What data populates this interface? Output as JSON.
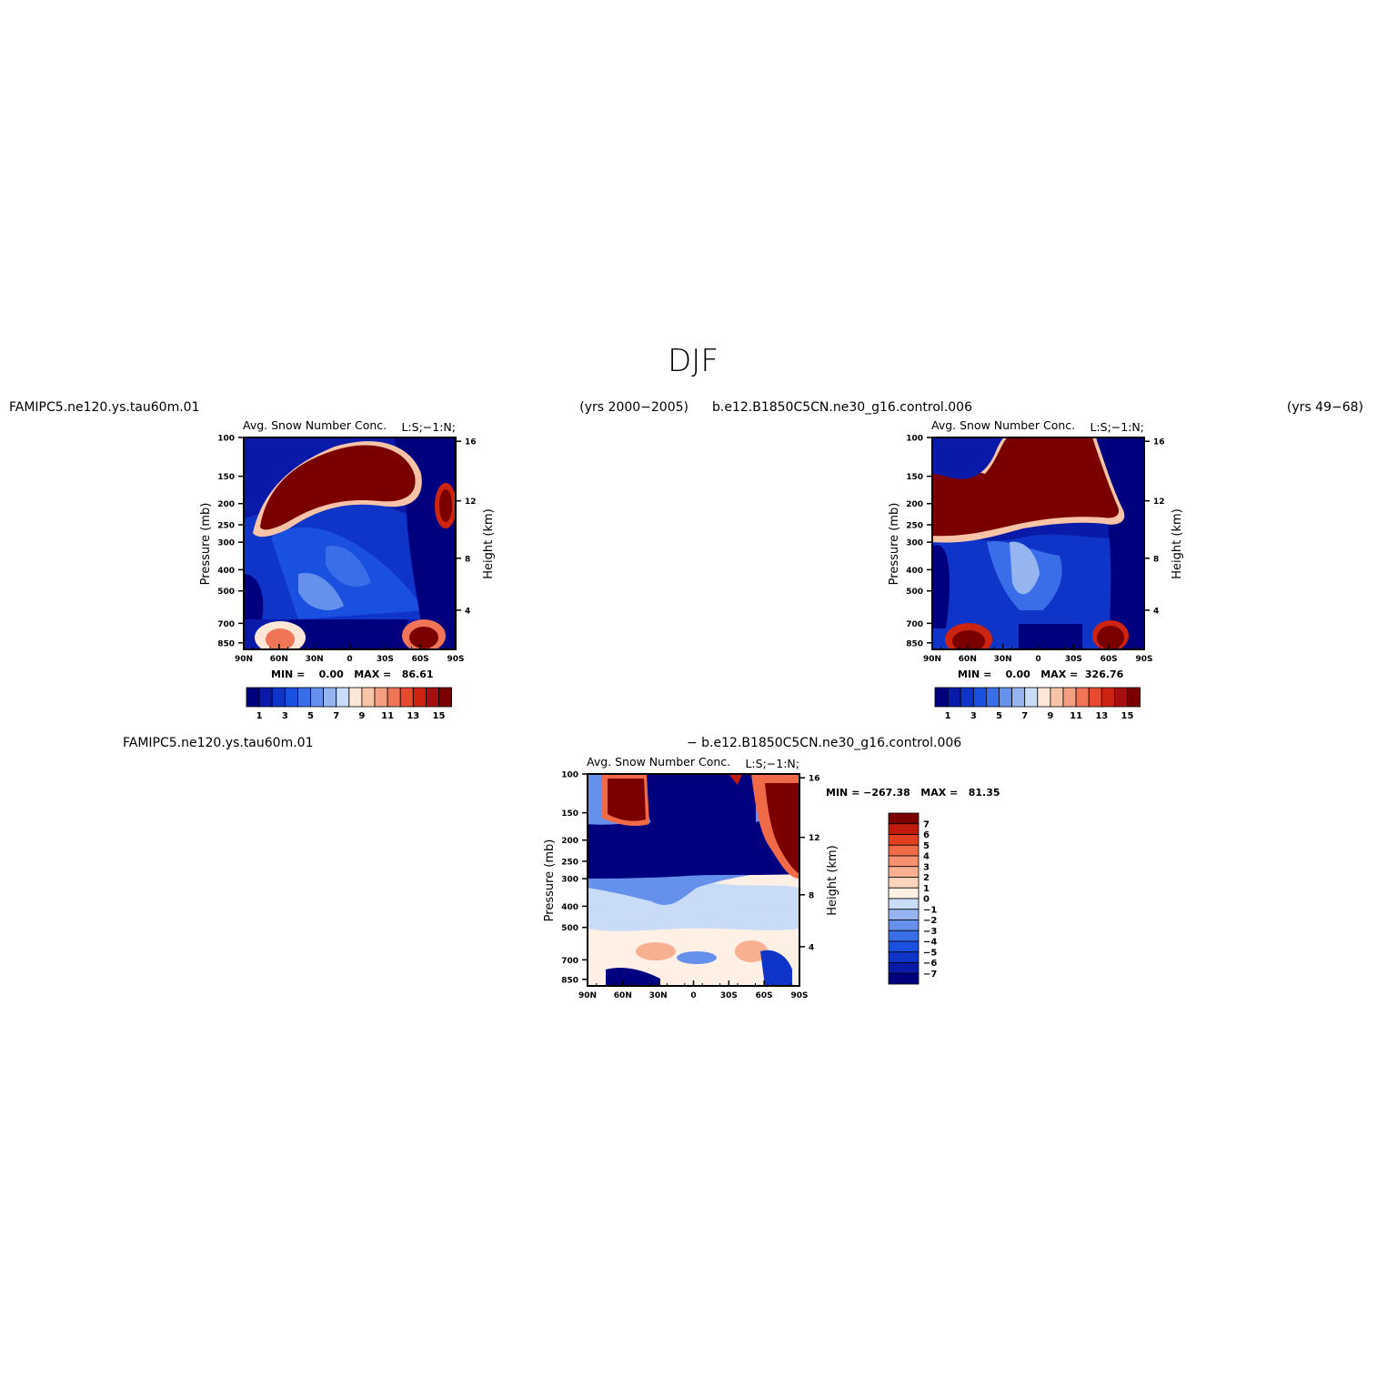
{
  "page_title": "DJF",
  "colors": {
    "abs_scale": [
      "#00007f",
      "#0a1aa8",
      "#0f35c8",
      "#1a50e0",
      "#3a6ee8",
      "#6590ec",
      "#95b4f0",
      "#c8dcf8",
      "#fbe6d8",
      "#f8c4a8",
      "#f59e80",
      "#f07456",
      "#e84a30",
      "#cc2410",
      "#a50f0f",
      "#7a0000"
    ],
    "diff_scale": [
      "#00007f",
      "#0a1aa8",
      "#0f35c8",
      "#1a50e0",
      "#3a6ee8",
      "#6590ec",
      "#95b4f0",
      "#c8dcf8",
      "#fff0e6",
      "#fbd4bc",
      "#f8b090",
      "#f59070",
      "#f06a48",
      "#e04020",
      "#c01a0a",
      "#7a0000"
    ]
  },
  "chart_data": [
    {
      "type": "heatmap",
      "case_label": "FAMIPC5.ne120.ys.tau60m.01",
      "years_label": "(yrs 2000−2005)",
      "title": "Avg. Snow Number Conc.",
      "units_label": "L:S;−1:N;",
      "ylabel": "Pressure (mb)",
      "y2label": "Height (km)",
      "x_ticks": [
        "90N",
        "60N",
        "30N",
        "0",
        "30S",
        "60S",
        "90S"
      ],
      "y_ticks": [
        "100",
        "150",
        "200",
        "250",
        "300",
        "400",
        "500",
        "700",
        "850"
      ],
      "y2_ticks": [
        "16",
        "12",
        "8",
        "4"
      ],
      "minmax_label": "MIN =    0.00   MAX =   86.61",
      "colorbar_labels": [
        "1",
        "3",
        "5",
        "7",
        "9",
        "11",
        "13",
        "15"
      ],
      "x_range": [
        "90N",
        "90S"
      ],
      "y_range": [
        100,
        900
      ]
    },
    {
      "type": "heatmap",
      "case_label": "b.e12.B1850C5CN.ne30_g16.control.006",
      "years_label": "(yrs 49−68)",
      "title": "Avg. Snow Number Conc.",
      "units_label": "L:S;−1:N;",
      "ylabel": "Pressure (mb)",
      "y2label": "Height (km)",
      "x_ticks": [
        "90N",
        "60N",
        "30N",
        "0",
        "30S",
        "60S",
        "90S"
      ],
      "y_ticks": [
        "100",
        "150",
        "200",
        "250",
        "300",
        "400",
        "500",
        "700",
        "850"
      ],
      "y2_ticks": [
        "16",
        "12",
        "8",
        "4"
      ],
      "minmax_label": "MIN =    0.00   MAX =  326.76",
      "colorbar_labels": [
        "1",
        "3",
        "5",
        "7",
        "9",
        "11",
        "13",
        "15"
      ],
      "x_range": [
        "90N",
        "90S"
      ],
      "y_range": [
        100,
        900
      ]
    },
    {
      "type": "heatmap",
      "case_label": "FAMIPC5.ne120.ys.tau60m.01",
      "diff_label": "− b.e12.B1850C5CN.ne30_g16.control.006",
      "title": "Avg. Snow Number Conc.",
      "units_label": "L:S;−1:N;",
      "ylabel": "Pressure (mb)",
      "y2label": "Height (km)",
      "x_ticks": [
        "90N",
        "60N",
        "30N",
        "0",
        "30S",
        "60S",
        "90S"
      ],
      "y_ticks": [
        "100",
        "150",
        "200",
        "250",
        "300",
        "400",
        "500",
        "700",
        "850"
      ],
      "y2_ticks": [
        "16",
        "12",
        "8",
        "4"
      ],
      "minmax_label": "MIN = −267.38   MAX =   81.35",
      "colorbar_labels": [
        "7",
        "6",
        "5",
        "4",
        "3",
        "2",
        "1",
        "0",
        "−1",
        "−2",
        "−3",
        "−4",
        "−5",
        "−6",
        "−7"
      ],
      "x_range": [
        "90N",
        "90S"
      ],
      "y_range": [
        100,
        900
      ]
    }
  ]
}
